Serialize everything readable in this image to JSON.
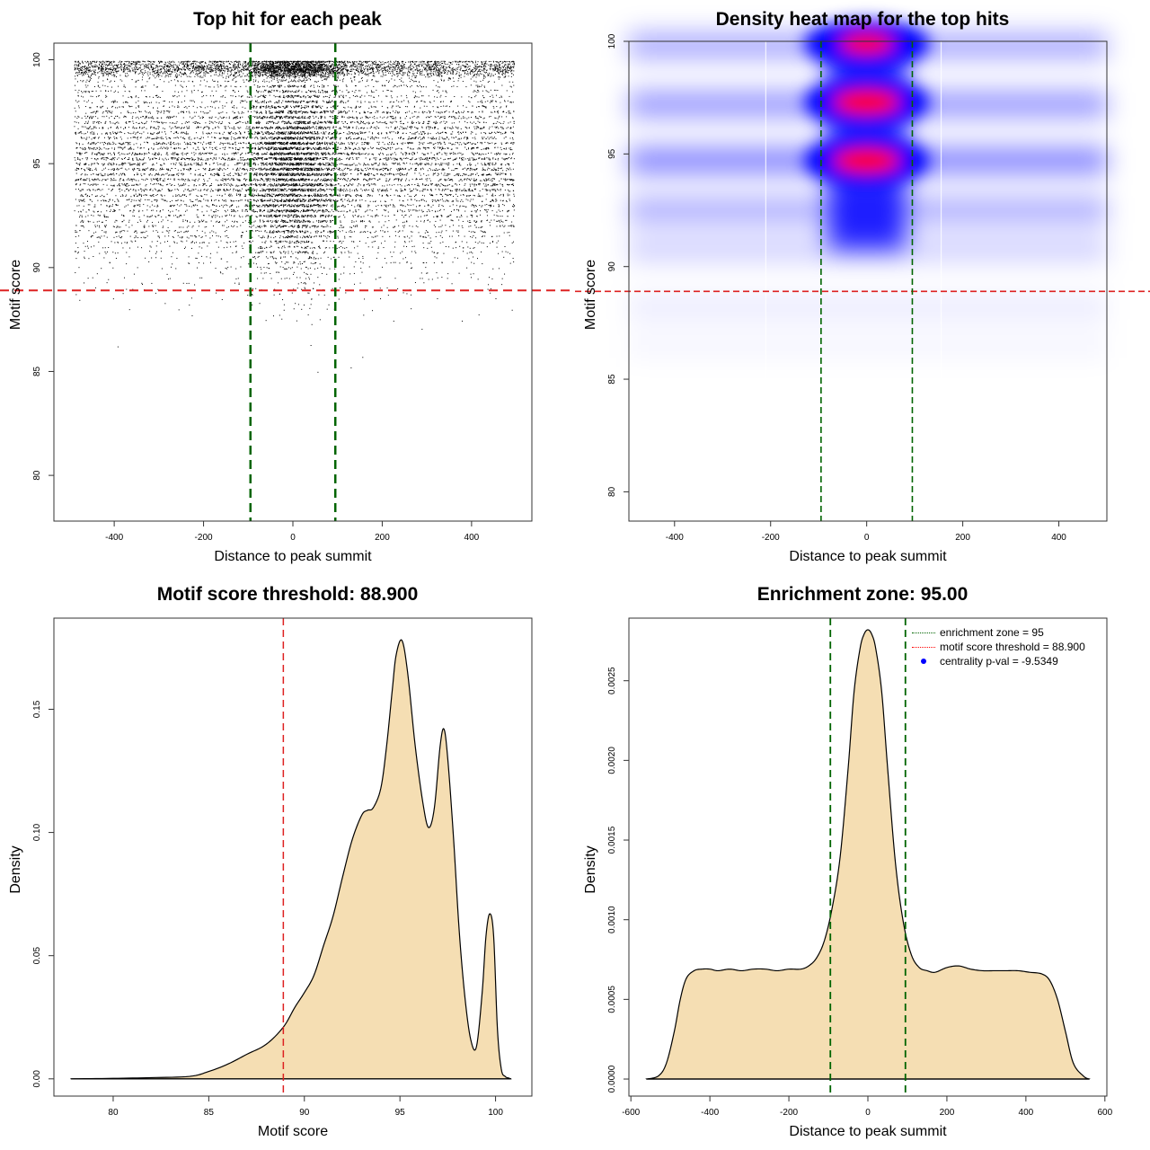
{
  "charts": {
    "scatter": {
      "title": "Top hit for each peak",
      "xlabel": "Distance to peak summit",
      "ylabel": "Motif score",
      "x_ticks": [
        "-400",
        "-200",
        "0",
        "200",
        "400"
      ],
      "y_ticks": [
        "80",
        "85",
        "90",
        "95",
        "100"
      ]
    },
    "heatmap": {
      "title": "Density heat map for the top hits",
      "xlabel": "Distance to peak summit",
      "ylabel": "Motif score",
      "x_ticks": [
        "-400",
        "-200",
        "0",
        "200",
        "400"
      ],
      "y_ticks": [
        "80",
        "85",
        "90",
        "95",
        "100"
      ]
    },
    "score_density": {
      "title": "Motif score threshold: 88.900",
      "xlabel": "Motif score",
      "ylabel": "Density",
      "x_ticks": [
        "80",
        "85",
        "90",
        "95",
        "100"
      ],
      "y_ticks": [
        "0.00",
        "0.05",
        "0.10",
        "0.15"
      ]
    },
    "distance_density": {
      "title": "Enrichment zone: 95.00",
      "xlabel": "Distance to peak summit",
      "ylabel": "Density",
      "x_ticks": [
        "-600",
        "-400",
        "-200",
        "0",
        "200",
        "400",
        "600"
      ],
      "y_ticks": [
        "0.0000",
        "0.0005",
        "0.0010",
        "0.0015",
        "0.0020",
        "0.0025"
      ],
      "legend": [
        {
          "label": "enrichment zone = 95",
          "color": "#006400",
          "symbol": "line"
        },
        {
          "label": "motif score threshold = 88.900",
          "color": "#ff0000",
          "symbol": "line"
        },
        {
          "label": "centrality p-val = -9.5349",
          "color": "#0000ff",
          "symbol": "dot"
        }
      ]
    }
  },
  "colors": {
    "fill": "#f5deb3",
    "threshold": "#dd2222",
    "zone": "#006400",
    "heat_low": "#0000ff",
    "heat_high": "#ff0000"
  },
  "chart_data": [
    {
      "type": "scatter",
      "title": "Top hit for each peak",
      "xlabel": "Distance to peak summit",
      "ylabel": "Motif score",
      "xlim": [
        -535,
        535
      ],
      "ylim": [
        77.8,
        100.8
      ],
      "n_points": 16000,
      "x_range": [
        -490,
        495
      ],
      "score_modes": [
        {
          "mean": 95.1,
          "sd": 2.4,
          "weight": 0.78
        },
        {
          "mean": 99.6,
          "sd": 0.22,
          "weight": 0.22
        }
      ],
      "central_enrichment": {
        "center": 0,
        "sd": 55,
        "fraction": 0.3
      },
      "threshold_line": 88.9,
      "zone_lines": [
        -95,
        95
      ]
    },
    {
      "type": "heatmap",
      "title": "Density heat map for the top hits",
      "xlabel": "Distance to peak summit",
      "ylabel": "Motif score",
      "xlim": [
        -495,
        500
      ],
      "ylim": [
        78.7,
        100
      ],
      "threshold_line": 88.9,
      "zone_lines": [
        -95,
        95
      ],
      "hotspots": [
        {
          "x": 0,
          "y": 97.3,
          "intensity": 1.0
        },
        {
          "x": 0,
          "y": 94.7,
          "intensity": 1.0
        },
        {
          "x": 0,
          "y": 99.9,
          "intensity": 0.8
        }
      ]
    },
    {
      "type": "area",
      "title": "Motif score threshold: 88.900",
      "xlabel": "Motif score",
      "ylabel": "Density",
      "xlim": [
        76.9,
        101.9
      ],
      "ylim": [
        -0.007,
        0.187
      ],
      "x": [
        77.8,
        80,
        82,
        84,
        85,
        86,
        87,
        88,
        88.9,
        89.5,
        90,
        90.5,
        91,
        91.5,
        92,
        92.5,
        93,
        93.3,
        93.6,
        94,
        94.3,
        94.6,
        94.8,
        95.1,
        95.4,
        95.8,
        96.2,
        96.5,
        96.8,
        97.1,
        97.3,
        97.5,
        97.8,
        98.1,
        98.4,
        98.7,
        99,
        99.3,
        99.5,
        99.7,
        99.9,
        100.1,
        100.3,
        100.5,
        100.7,
        100.8
      ],
      "y": [
        0,
        0.0002,
        0.0005,
        0.001,
        0.003,
        0.006,
        0.01,
        0.014,
        0.021,
        0.029,
        0.035,
        0.042,
        0.054,
        0.066,
        0.082,
        0.097,
        0.107,
        0.109,
        0.11,
        0.118,
        0.135,
        0.158,
        0.172,
        0.178,
        0.165,
        0.135,
        0.112,
        0.102,
        0.11,
        0.135,
        0.142,
        0.13,
        0.098,
        0.06,
        0.033,
        0.016,
        0.013,
        0.035,
        0.058,
        0.067,
        0.058,
        0.02,
        0.004,
        0.001,
        0.0003,
        0
      ],
      "threshold_line": 88.9
    },
    {
      "type": "area",
      "title": "Enrichment zone: 95.00",
      "xlabel": "Distance to peak summit",
      "ylabel": "Density",
      "xlim": [
        -605,
        605
      ],
      "ylim": [
        -0.000107,
        0.002893
      ],
      "x": [
        -560,
        -530,
        -510,
        -490,
        -475,
        -460,
        -440,
        -420,
        -400,
        -380,
        -350,
        -320,
        -290,
        -260,
        -230,
        -200,
        -170,
        -150,
        -130,
        -110,
        -90,
        -70,
        -50,
        -35,
        -20,
        -10,
        0,
        10,
        20,
        35,
        50,
        70,
        90,
        110,
        130,
        150,
        170,
        200,
        230,
        260,
        290,
        320,
        350,
        380,
        410,
        440,
        460,
        480,
        500,
        520,
        545,
        560
      ],
      "y": [
        0,
        2e-05,
        0.0001,
        0.0003,
        0.0005,
        0.00063,
        0.00068,
        0.00069,
        0.00069,
        0.00068,
        0.00069,
        0.00068,
        0.00069,
        0.00069,
        0.00068,
        0.00069,
        0.00069,
        0.00071,
        0.00076,
        0.00087,
        0.00108,
        0.0014,
        0.00195,
        0.00243,
        0.0027,
        0.00279,
        0.00282,
        0.00279,
        0.0027,
        0.00243,
        0.00195,
        0.00135,
        0.00098,
        0.00078,
        0.0007,
        0.00068,
        0.00067,
        0.0007,
        0.00071,
        0.00069,
        0.00068,
        0.00068,
        0.00068,
        0.00068,
        0.00067,
        0.00066,
        0.00062,
        0.0005,
        0.0003,
        0.0001,
        2e-05,
        0
      ],
      "zone_lines": [
        -95,
        95
      ]
    }
  ]
}
